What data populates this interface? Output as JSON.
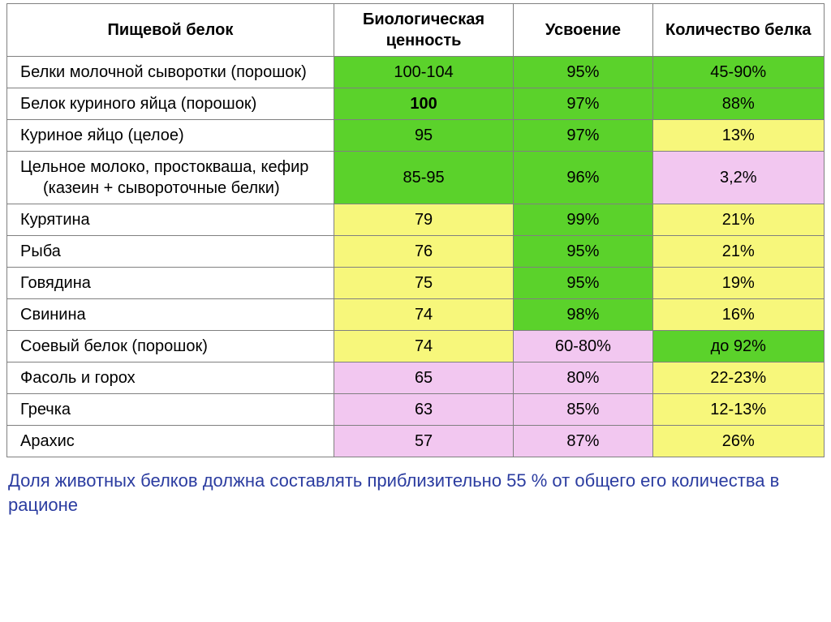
{
  "colors": {
    "green": "#5bd22b",
    "yellow": "#f7f77b",
    "pink": "#f2c7f0",
    "white": "#ffffff"
  },
  "headers": {
    "name": "Пищевой белок",
    "bio": "Биологическая ценность",
    "abs": "Усвоение",
    "qty": "Количество белка"
  },
  "rows": [
    {
      "name": "Белки молочной сыворотки (порошок)",
      "bio": {
        "v": "100-104",
        "c": "green",
        "bold": false
      },
      "abs": {
        "v": "95%",
        "c": "green"
      },
      "qty": {
        "v": "45-90%",
        "c": "green"
      }
    },
    {
      "name": "Белок куриного яйца (порошок)",
      "bio": {
        "v": "100",
        "c": "green",
        "bold": true
      },
      "abs": {
        "v": "97%",
        "c": "green"
      },
      "qty": {
        "v": "88%",
        "c": "green"
      }
    },
    {
      "name": "Куриное яйцо (целое)",
      "bio": {
        "v": "95",
        "c": "green",
        "bold": false
      },
      "abs": {
        "v": "97%",
        "c": "green"
      },
      "qty": {
        "v": "13%",
        "c": "yellow"
      }
    },
    {
      "name": "Цельное молоко, простокваша, кефир (казеин + сывороточные белки)",
      "bio": {
        "v": "85-95",
        "c": "green",
        "bold": false
      },
      "abs": {
        "v": "96%",
        "c": "green"
      },
      "qty": {
        "v": "3,2%",
        "c": "pink"
      }
    },
    {
      "name": "Курятина",
      "bio": {
        "v": "79",
        "c": "yellow",
        "bold": false
      },
      "abs": {
        "v": "99%",
        "c": "green"
      },
      "qty": {
        "v": "21%",
        "c": "yellow"
      }
    },
    {
      "name": "Рыба",
      "bio": {
        "v": "76",
        "c": "yellow",
        "bold": false
      },
      "abs": {
        "v": "95%",
        "c": "green"
      },
      "qty": {
        "v": "21%",
        "c": "yellow"
      }
    },
    {
      "name": "Говядина",
      "bio": {
        "v": "75",
        "c": "yellow",
        "bold": false
      },
      "abs": {
        "v": "95%",
        "c": "green"
      },
      "qty": {
        "v": "19%",
        "c": "yellow"
      }
    },
    {
      "name": "Свинина",
      "bio": {
        "v": "74",
        "c": "yellow",
        "bold": false
      },
      "abs": {
        "v": "98%",
        "c": "green"
      },
      "qty": {
        "v": "16%",
        "c": "yellow"
      }
    },
    {
      "name": "Соевый белок (порошок)",
      "bio": {
        "v": "74",
        "c": "yellow",
        "bold": false
      },
      "abs": {
        "v": "60-80%",
        "c": "pink"
      },
      "qty": {
        "v": "до 92%",
        "c": "green"
      }
    },
    {
      "name": "Фасоль и горох",
      "bio": {
        "v": "65",
        "c": "pink",
        "bold": false
      },
      "abs": {
        "v": "80%",
        "c": "pink"
      },
      "qty": {
        "v": "22-23%",
        "c": "yellow"
      }
    },
    {
      "name": "Гречка",
      "bio": {
        "v": "63",
        "c": "pink",
        "bold": false
      },
      "abs": {
        "v": "85%",
        "c": "pink"
      },
      "qty": {
        "v": "12-13%",
        "c": "yellow"
      }
    },
    {
      "name": "Арахис",
      "bio": {
        "v": "57",
        "c": "pink",
        "bold": false
      },
      "abs": {
        "v": "87%",
        "c": "pink"
      },
      "qty": {
        "v": "26%",
        "c": "yellow"
      }
    }
  ],
  "footnote": "Доля животных белков должна составлять приблизительно 55 % от общего его количества в рационе"
}
